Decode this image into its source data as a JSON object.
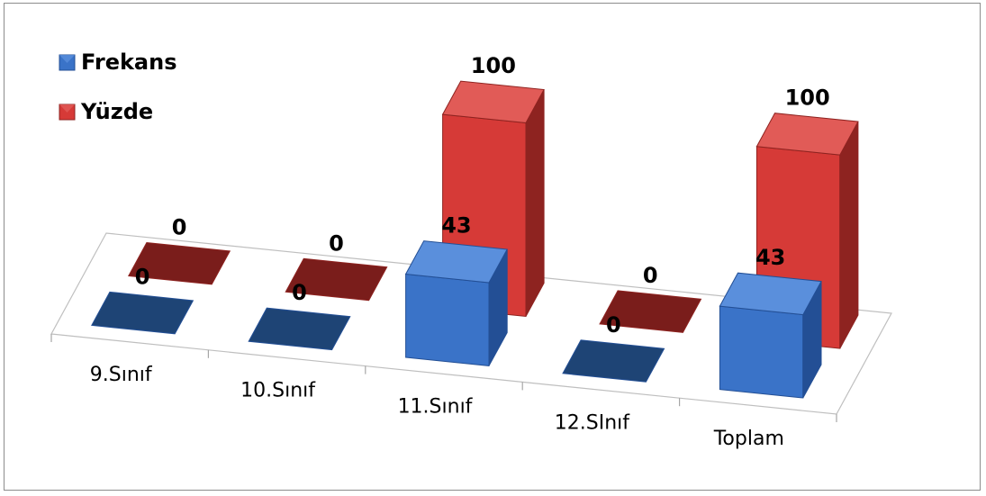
{
  "chart_data": {
    "type": "bar",
    "categories": [
      "9.Sınıf",
      "10.Sınıf",
      "11.Sınıf",
      "12.SInıf",
      "Toplam"
    ],
    "series": [
      {
        "name": "Frekans",
        "values": [
          0,
          0,
          43,
          0,
          43
        ]
      },
      {
        "name": "Yüzde",
        "values": [
          0,
          0,
          100,
          0,
          100
        ]
      }
    ],
    "title": "",
    "xlabel": "",
    "ylabel": "",
    "ylim": [
      0,
      100
    ],
    "grid": false,
    "legend_position": "top-left",
    "style": "3d-column",
    "colors": {
      "Frekans": {
        "front": "#3a73c8",
        "side": "#234f95",
        "top": "#5a8fdc",
        "flat": "#1e4475"
      },
      "Yüzde": {
        "front": "#d63a37",
        "side": "#8e2320",
        "top": "#e15b57",
        "flat": "#7a1d1b"
      }
    }
  }
}
